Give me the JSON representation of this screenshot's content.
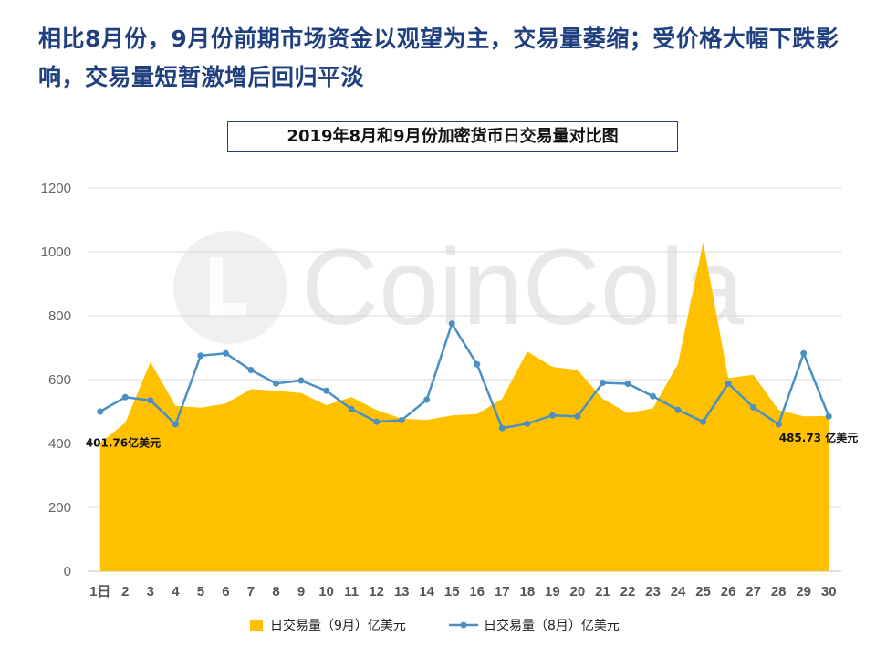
{
  "headline": "相比8月份，9月份前期市场资金以观望为主，交易量萎缩；受价格大幅下跌影响，交易量短暂激增后回归平淡",
  "watermark": "CoinCola",
  "chart_data": {
    "type": "area",
    "title": "2019年8月和9月份加密货币日交易量对比图",
    "x": [
      "1日",
      "2",
      "3",
      "4",
      "5",
      "6",
      "7",
      "8",
      "9",
      "10",
      "11",
      "12",
      "13",
      "14",
      "15",
      "16",
      "17",
      "18",
      "19",
      "20",
      "21",
      "22",
      "23",
      "24",
      "25",
      "26",
      "27",
      "28",
      "29",
      "30"
    ],
    "ylim": [
      0,
      1200
    ],
    "yticks": [
      0,
      200,
      400,
      600,
      800,
      1000,
      1200
    ],
    "grid": true,
    "legend_position": "bottom",
    "series": [
      {
        "name": "日交易量（9月）亿美元",
        "type": "area",
        "color": "#ffc000",
        "values": [
          401.76,
          465,
          655,
          518,
          512,
          525,
          570,
          565,
          558,
          520,
          545,
          505,
          478,
          474,
          488,
          492,
          540,
          688,
          640,
          630,
          540,
          495,
          510,
          650,
          1030,
          605,
          615,
          505,
          485,
          485.73
        ]
      },
      {
        "name": "日交易量（8月）亿美元",
        "type": "line",
        "color": "#4a90c4",
        "values": [
          500,
          545,
          535,
          460,
          675,
          682,
          630,
          588,
          597,
          565,
          508,
          468,
          473,
          537,
          775,
          648,
          448,
          462,
          488,
          485,
          590,
          587,
          548,
          505,
          468,
          588,
          513,
          460,
          682,
          485
        ]
      }
    ],
    "annotations": [
      {
        "text": "401.76亿美元",
        "x": "1日",
        "y": 401.76
      },
      {
        "text": "485.73 亿美元",
        "x": "30",
        "y": 485.73
      }
    ]
  }
}
